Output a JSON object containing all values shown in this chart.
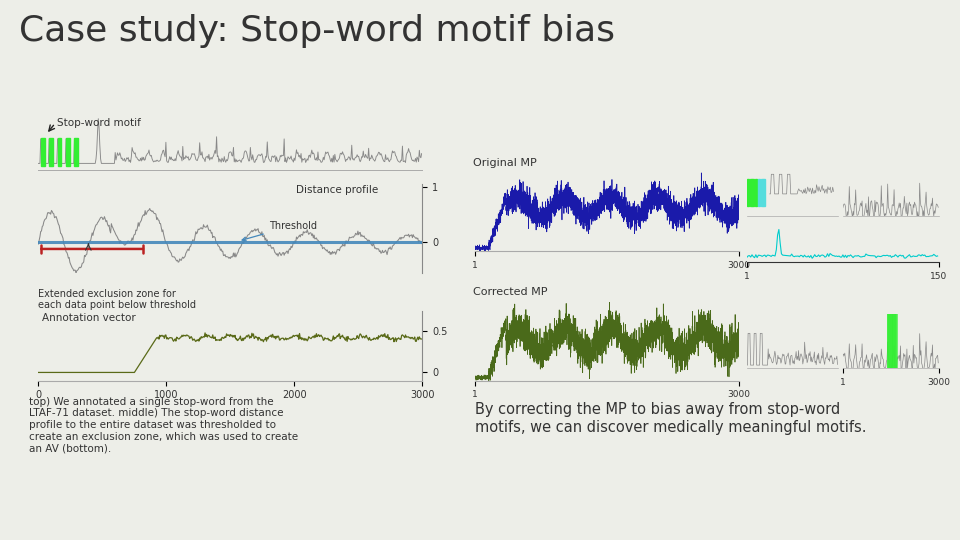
{
  "title": "Case study: Stop-word motif bias",
  "title_fontsize": 26,
  "bg_color": "#edeee8",
  "text_color": "#333333",
  "labels": {
    "stop_word_motif": "Stop-word motif",
    "distance_profile": "Distance profile",
    "threshold": "Threshold",
    "extended_exclusion": "Extended exclusion zone for\neach data point below threshold",
    "annotation_vector": "Annotation vector",
    "original_mp": "Original MP",
    "corrected_mp": "Corrected MP"
  },
  "bottom_text_left": "top) We annotated a single stop-word from the\nLTAF-71 dataset. middle) The stop-word distance\nprofile to the entire dataset was thresholded to\ncreate an exclusion zone, which was used to create\nan AV (bottom).",
  "bottom_text_right": "By correcting the MP to bias away from stop-word\nmotifs, we can discover medically meaningful motifs.",
  "colors": {
    "blue": "#1a1aaa",
    "dark_green": "#4a6a1a",
    "cyan": "#00cccc",
    "bright_green": "#33ee33",
    "lime_green": "#88cc00",
    "gray_signal": "#888888",
    "threshold_line": "#4488bb",
    "red_bracket": "#bb2222",
    "annotation_green": "#5a6a18"
  },
  "seed": 42
}
